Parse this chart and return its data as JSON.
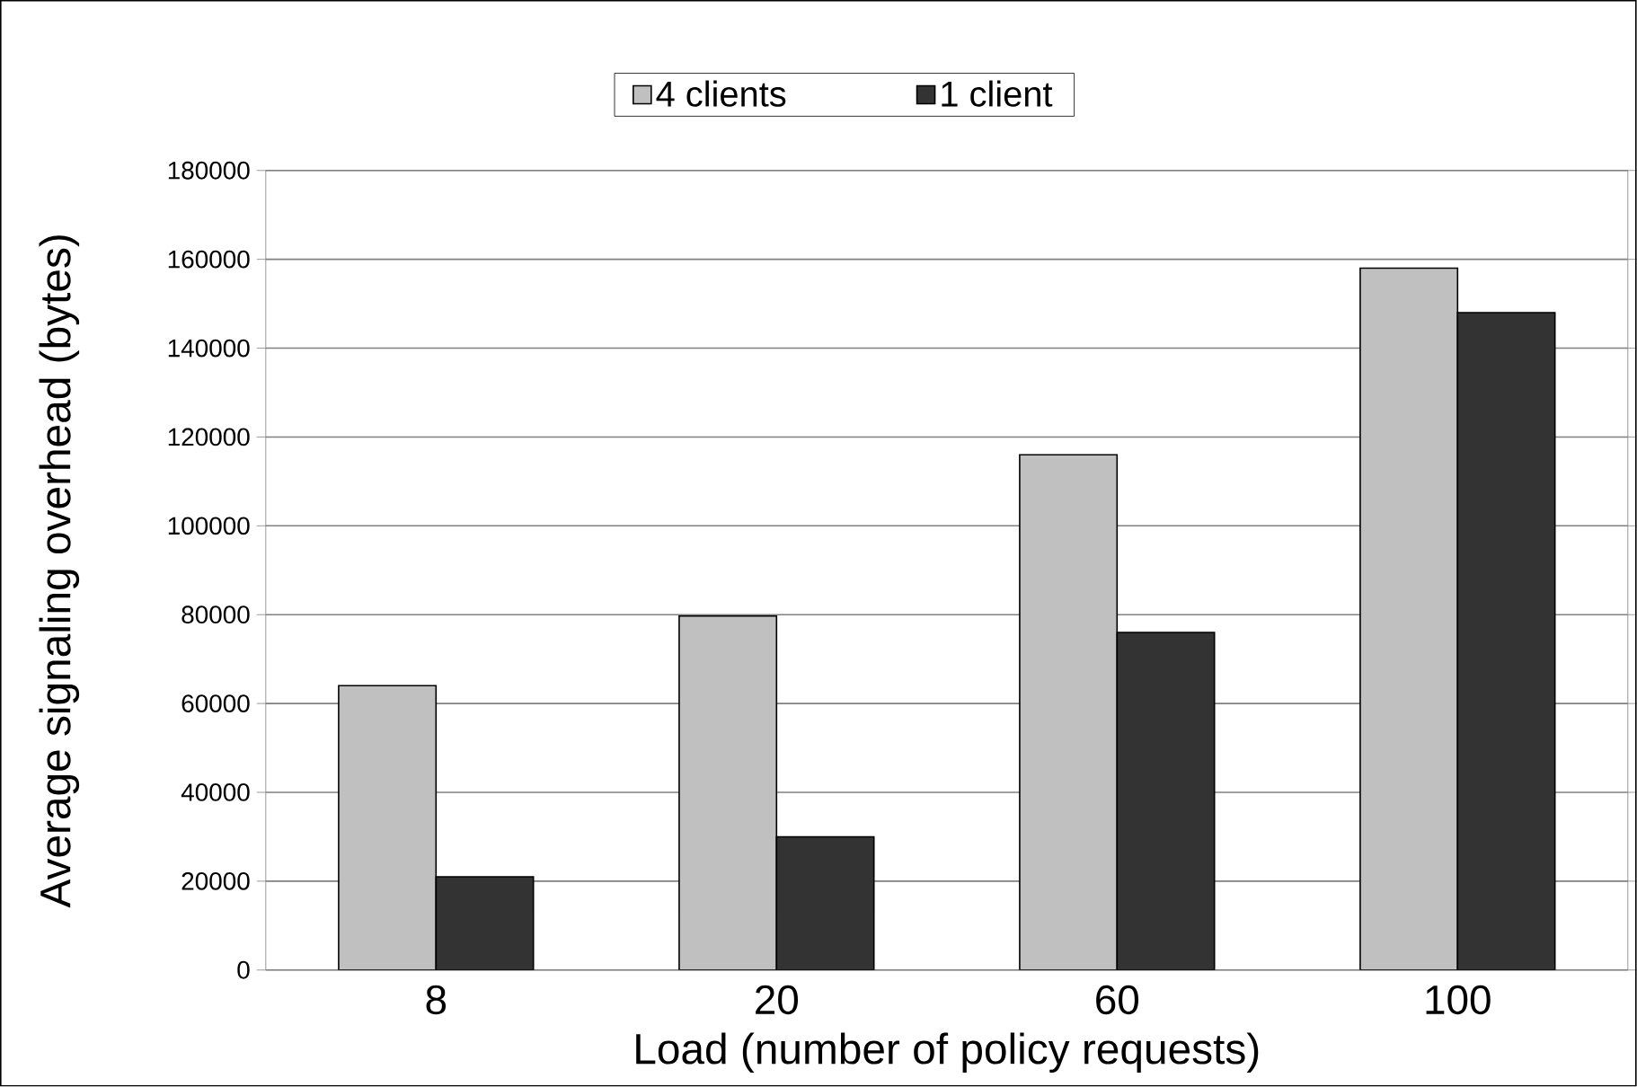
{
  "chart_data": {
    "type": "bar",
    "xlabel": "Load (number of policy requests)",
    "ylabel": "Average signaling overhead (bytes)",
    "categories": [
      "8",
      "20",
      "60",
      "100"
    ],
    "series": [
      {
        "name": "4 clients",
        "color": "#c0c0c0",
        "values": [
          64000,
          79700,
          116000,
          158000
        ]
      },
      {
        "name": "1 client",
        "color": "#333333",
        "values": [
          21000,
          30000,
          76000,
          148000
        ]
      }
    ],
    "ylim": [
      0,
      180000
    ],
    "yticks": [
      0,
      20000,
      40000,
      60000,
      80000,
      100000,
      120000,
      140000,
      160000,
      180000
    ],
    "grid": "y",
    "legend": "top"
  }
}
